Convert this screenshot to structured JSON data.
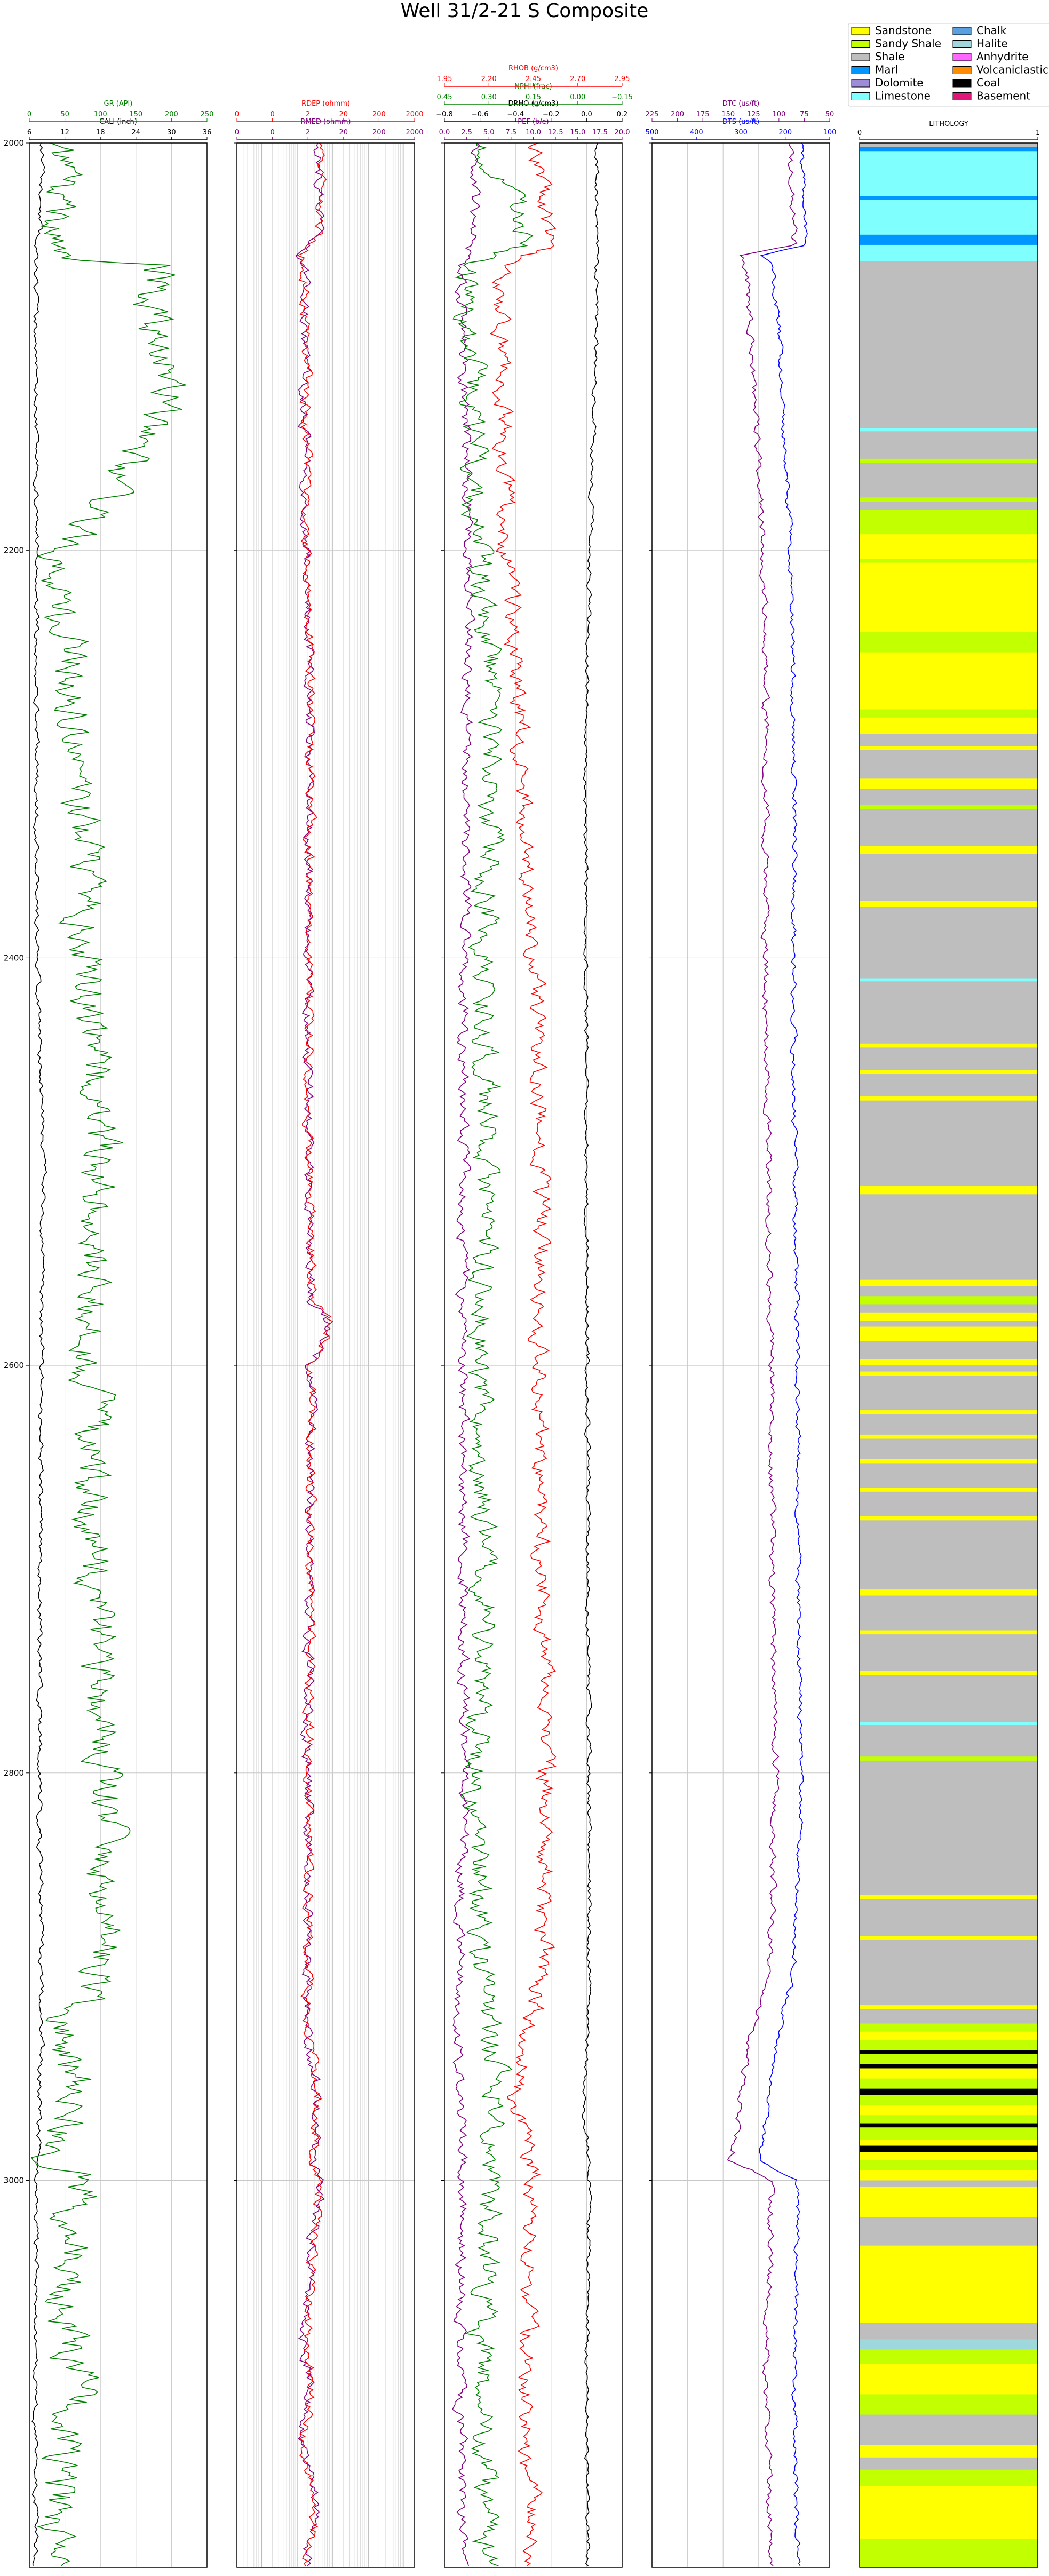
{
  "chart_data": {
    "type": "line",
    "title": "Well 31/2-21 S Composite",
    "ylim": [
      2000,
      3190
    ],
    "depth_ticks": [
      2000,
      2200,
      2400,
      2600,
      2800,
      3000
    ],
    "grid": true,
    "tracks": [
      {
        "id": "t1",
        "curves": [
          {
            "name": "CALI (inch)",
            "color": "#000000",
            "range": [
              6,
              36
            ],
            "ticks": [
              "6",
              "12",
              "18",
              "24",
              "30",
              "36"
            ]
          },
          {
            "name": "GR (API)",
            "color": "#008000",
            "range": [
              0,
              250
            ],
            "ticks": [
              "0",
              "50",
              "100",
              "150",
              "200",
              "250"
            ]
          }
        ]
      },
      {
        "id": "t2",
        "log": true,
        "curves": [
          {
            "name": "RMED (ohmm)",
            "color": "#800080",
            "range": [
              0.02,
              2000
            ],
            "ticks": [
              "0",
              "0",
              "2",
              "20",
              "200",
              "2000"
            ]
          },
          {
            "name": "RDEP (ohmm)",
            "color": "#ff0000",
            "range": [
              0.02,
              2000
            ],
            "ticks": [
              "0",
              "0",
              "2",
              "20",
              "200",
              "2000"
            ]
          }
        ]
      },
      {
        "id": "t3",
        "curves": [
          {
            "name": "PEF (b/e)",
            "color": "#800080",
            "range": [
              0,
              20
            ],
            "ticks": [
              "0.0",
              "2.5",
              "5.0",
              "7.5",
              "10.0",
              "12.5",
              "15.0",
              "17.5",
              "20.0"
            ]
          },
          {
            "name": "DRHO (g/cm3)",
            "color": "#000000",
            "range": [
              -0.9,
              0.3
            ],
            "ticks": [
              "−0.8",
              "−0.6",
              "−0.4",
              "−0.2",
              "0.0",
              "0.2"
            ]
          },
          {
            "name": "NPHI (frac)",
            "color": "#008000",
            "range": [
              0.45,
              -0.15
            ],
            "ticks": [
              "0.45",
              "0.30",
              "0.15",
              "0.00",
              "−0.15"
            ]
          },
          {
            "name": "RHOB (g/cm3)",
            "color": "#ff0000",
            "range": [
              1.95,
              2.95
            ],
            "ticks": [
              "1.95",
              "2.20",
              "2.45",
              "2.70",
              "2.95"
            ]
          }
        ]
      },
      {
        "id": "t4",
        "curves": [
          {
            "name": "DTS (us/ft)",
            "color": "#0000ff",
            "range": [
              550,
              50
            ],
            "ticks": [
              "500",
              "400",
              "300",
              "200",
              "100"
            ]
          },
          {
            "name": "DTC (us/ft)",
            "color": "#800080",
            "range": [
              240,
              40
            ],
            "ticks": [
              "225",
              "200",
              "175",
              "150",
              "125",
              "100",
              "75",
              "50"
            ]
          }
        ]
      },
      {
        "id": "t5",
        "name": "LITHOLOGY",
        "range": [
          0,
          1
        ],
        "ticks": [
          "0",
          "1"
        ]
      }
    ],
    "legend": {
      "placement": "top-right",
      "entries": [
        {
          "label": "Sandstone",
          "color": "#ffff00"
        },
        {
          "label": "Sandy Shale",
          "color": "#c2ff00"
        },
        {
          "label": "Shale",
          "color": "#bebebe"
        },
        {
          "label": "Marl",
          "color": "#0096ff"
        },
        {
          "label": "Dolomite",
          "color": "#9e8cd9"
        },
        {
          "label": "Limestone",
          "color": "#80ffff"
        },
        {
          "label": "Chalk",
          "color": "#5aa0e0"
        },
        {
          "label": "Halite",
          "color": "#9ed7dc"
        },
        {
          "label": "Anhydrite",
          "color": "#ff66ff"
        },
        {
          "label": "Volcaniclastics",
          "color": "#ff8c00"
        },
        {
          "label": "Coal",
          "color": "#000000"
        },
        {
          "label": "Basement",
          "color": "#e0157a"
        }
      ]
    },
    "lithology": [
      [
        2000,
        2002,
        "Shale"
      ],
      [
        2002,
        2004,
        "Marl"
      ],
      [
        2004,
        2026,
        "Limestone"
      ],
      [
        2026,
        2028,
        "Marl"
      ],
      [
        2028,
        2045,
        "Limestone"
      ],
      [
        2045,
        2050,
        "Marl"
      ],
      [
        2050,
        2058,
        "Limestone"
      ],
      [
        2058,
        2140,
        "Shale"
      ],
      [
        2140,
        2141.5,
        "Limestone"
      ],
      [
        2141.5,
        2155,
        "Shale"
      ],
      [
        2155,
        2157,
        "Sandy Shale"
      ],
      [
        2157,
        2174,
        "Shale"
      ],
      [
        2174,
        2176,
        "Sandy Shale"
      ],
      [
        2176,
        2180,
        "Shale"
      ],
      [
        2180,
        2192,
        "Sandy Shale"
      ],
      [
        2192,
        2204,
        "Sandstone"
      ],
      [
        2204,
        2206,
        "Sandy Shale"
      ],
      [
        2206,
        2240,
        "Sandstone"
      ],
      [
        2240,
        2250,
        "Sandy Shale"
      ],
      [
        2250,
        2260,
        "Sandstone"
      ],
      [
        2260,
        2278,
        "Sandstone"
      ],
      [
        2278,
        2282,
        "Sandy Shale"
      ],
      [
        2282,
        2290,
        "Sandstone"
      ],
      [
        2290,
        2296,
        "Shale"
      ],
      [
        2296,
        2298,
        "Sandstone"
      ],
      [
        2298,
        2312,
        "Shale"
      ],
      [
        2312,
        2317,
        "Sandstone"
      ],
      [
        2317,
        2325,
        "Shale"
      ],
      [
        2325,
        2327,
        "Sandy Shale"
      ],
      [
        2327,
        2345,
        "Shale"
      ],
      [
        2345,
        2349,
        "Sandstone"
      ],
      [
        2349,
        2372,
        "Shale"
      ],
      [
        2372,
        2375,
        "Sandstone"
      ],
      [
        2375,
        2410,
        "Shale"
      ],
      [
        2410,
        2411.5,
        "Limestone"
      ],
      [
        2411.5,
        2442,
        "Shale"
      ],
      [
        2442,
        2444,
        "Sandstone"
      ],
      [
        2444,
        2455,
        "Shale"
      ],
      [
        2455,
        2457,
        "Sandstone"
      ],
      [
        2457,
        2468,
        "Shale"
      ],
      [
        2468,
        2470,
        "Sandstone"
      ],
      [
        2470,
        2512,
        "Shale"
      ],
      [
        2512,
        2516,
        "Sandstone"
      ],
      [
        2516,
        2558,
        "Shale"
      ],
      [
        2558,
        2561,
        "Sandstone"
      ],
      [
        2561,
        2566,
        "Shale"
      ],
      [
        2566,
        2570,
        "Sandy Shale"
      ],
      [
        2570,
        2574,
        "Shale"
      ],
      [
        2574,
        2578,
        "Sandstone"
      ],
      [
        2578,
        2581,
        "Shale"
      ],
      [
        2581,
        2588,
        "Sandstone"
      ],
      [
        2588,
        2597,
        "Shale"
      ],
      [
        2597,
        2600,
        "Sandstone"
      ],
      [
        2600,
        2603,
        "Shale"
      ],
      [
        2603,
        2605,
        "Sandstone"
      ],
      [
        2605,
        2622,
        "Shale"
      ],
      [
        2622,
        2624,
        "Sandstone"
      ],
      [
        2624,
        2634,
        "Shale"
      ],
      [
        2634,
        2636,
        "Sandstone"
      ],
      [
        2636,
        2646,
        "Shale"
      ],
      [
        2646,
        2648,
        "Sandstone"
      ],
      [
        2648,
        2660,
        "Shale"
      ],
      [
        2660,
        2662,
        "Sandstone"
      ],
      [
        2662,
        2674,
        "Shale"
      ],
      [
        2674,
        2676,
        "Sandstone"
      ],
      [
        2676,
        2710,
        "Shale"
      ],
      [
        2710,
        2713,
        "Sandstone"
      ],
      [
        2713,
        2730,
        "Shale"
      ],
      [
        2730,
        2732,
        "Sandstone"
      ],
      [
        2732,
        2750,
        "Shale"
      ],
      [
        2750,
        2752,
        "Sandstone"
      ],
      [
        2752,
        2775,
        "Shale"
      ],
      [
        2775,
        2776.5,
        "Limestone"
      ],
      [
        2776.5,
        2792,
        "Shale"
      ],
      [
        2792,
        2794,
        "Sandy Shale"
      ],
      [
        2794,
        2860,
        "Shale"
      ],
      [
        2860,
        2862,
        "Sandstone"
      ],
      [
        2862,
        2880,
        "Shale"
      ],
      [
        2880,
        2882,
        "Sandstone"
      ],
      [
        2882,
        2914,
        "Shale"
      ],
      [
        2914,
        2916,
        "Sandstone"
      ],
      [
        2916,
        2923,
        "Shale"
      ],
      [
        2923,
        2927,
        "Sandy Shale"
      ],
      [
        2927,
        2931,
        "Sandstone"
      ],
      [
        2931,
        2936,
        "Sandy Shale"
      ],
      [
        2936,
        2938,
        "Coal"
      ],
      [
        2938,
        2943,
        "Sandy Shale"
      ],
      [
        2943,
        2945,
        "Coal"
      ],
      [
        2945,
        2950,
        "Sandstone"
      ],
      [
        2950,
        2955,
        "Sandy Shale"
      ],
      [
        2955,
        2958,
        "Coal"
      ],
      [
        2958,
        2963,
        "Sandy Shale"
      ],
      [
        2963,
        2968,
        "Sandstone"
      ],
      [
        2968,
        2972,
        "Sandy Shale"
      ],
      [
        2972,
        2974,
        "Coal"
      ],
      [
        2974,
        2980,
        "Sandy Shale"
      ],
      [
        2980,
        2983,
        "Sandstone"
      ],
      [
        2983,
        2986,
        "Coal"
      ],
      [
        2986,
        2990,
        "Sandstone"
      ],
      [
        2990,
        2995,
        "Sandy Shale"
      ],
      [
        2995,
        3000,
        "Sandstone"
      ],
      [
        3000,
        3003,
        "Shale"
      ],
      [
        3003,
        3018,
        "Sandstone"
      ],
      [
        3018,
        3032,
        "Shale"
      ],
      [
        3032,
        3070,
        "Sandstone"
      ],
      [
        3070,
        3078,
        "Shale"
      ],
      [
        3078,
        3083,
        "Halite"
      ],
      [
        3083,
        3090,
        "Sandy Shale"
      ],
      [
        3090,
        3105,
        "Sandstone"
      ],
      [
        3105,
        3115,
        "Sandy Shale"
      ],
      [
        3115,
        3130,
        "Shale"
      ],
      [
        3130,
        3136,
        "Sandstone"
      ],
      [
        3136,
        3142,
        "Shale"
      ],
      [
        3142,
        3150,
        "Sandy Shale"
      ],
      [
        3150,
        3176,
        "Sandstone"
      ],
      [
        3176,
        3190,
        "Sandy Shale"
      ]
    ],
    "series": [
      {
        "name": "CALI (inch)",
        "track": "t1",
        "seed": 11,
        "depth": [
          2000,
          2040,
          2060,
          2100,
          2200,
          2400,
          2500,
          2600,
          2800,
          2920,
          2980,
          3000,
          3100,
          3190
        ],
        "values": [
          8.2,
          7.6,
          7.0,
          7.1,
          7.2,
          7.3,
          8.4,
          8.0,
          7.6,
          8.1,
          7.5,
          7.2,
          7.0,
          7.1
        ],
        "noise": 0.35
      },
      {
        "name": "GR (API)",
        "track": "t1",
        "seed": 12,
        "depth": [
          2000,
          2040,
          2057,
          2060,
          2090,
          2120,
          2160,
          2190,
          2200,
          2250,
          2300,
          2400,
          2500,
          2560,
          2600,
          2700,
          2800,
          2900,
          2925,
          2960,
          2990,
          3000,
          3030,
          3060,
          3100,
          3150,
          3190
        ],
        "values": [
          40,
          35,
          45,
          180,
          170,
          210,
          130,
          80,
          40,
          55,
          70,
          80,
          100,
          90,
          85,
          90,
          110,
          105,
          40,
          80,
          30,
          70,
          65,
          45,
          70,
          35,
          55
        ],
        "noise": 22
      },
      {
        "name": "RMED (ohmm)",
        "track": "t2",
        "seed": 21,
        "depth": [
          2000,
          2010,
          2040,
          2055,
          2060,
          2200,
          2260,
          2400,
          2500,
          2570,
          2580,
          2600,
          2700,
          2800,
          2920,
          2960,
          2990,
          3000,
          3040,
          3080,
          3100,
          3130,
          3160,
          3190
        ],
        "values": [
          3,
          4,
          4,
          1.2,
          1.6,
          1.7,
          2.2,
          2.1,
          2.0,
          2.5,
          8,
          2.5,
          2.2,
          2.0,
          1.8,
          3.5,
          2.5,
          4.2,
          2.5,
          1.5,
          2.5,
          1.3,
          3,
          1.6
        ],
        "noise": 0.12
      },
      {
        "name": "RDEP (ohmm)",
        "track": "t2",
        "seed": 22,
        "depth": [
          2000,
          2010,
          2040,
          2055,
          2060,
          2200,
          2260,
          2400,
          2500,
          2570,
          2580,
          2600,
          2700,
          2800,
          2920,
          2960,
          2990,
          3000,
          3040,
          3080,
          3100,
          3130,
          3160,
          3190
        ],
        "values": [
          3.2,
          4.3,
          4.2,
          1.3,
          1.7,
          1.8,
          2.3,
          2.2,
          2.1,
          2.7,
          9,
          2.7,
          2.3,
          2.1,
          1.9,
          3.8,
          2.7,
          4.5,
          2.6,
          1.6,
          2.7,
          1.4,
          3.2,
          1.7
        ],
        "noise": 0.12
      },
      {
        "name": "PEF (b/e)",
        "track": "t3",
        "seed": 31,
        "depth": [
          2000,
          2050,
          2060,
          2200,
          2400,
          2600,
          2800,
          2930,
          3000,
          3100,
          3190
        ],
        "values": [
          3.5,
          3.2,
          1.8,
          2.8,
          2.2,
          2.0,
          2.3,
          1.5,
          2.0,
          1.8,
          2.2
        ],
        "noise": 0.5
      },
      {
        "name": "DRHO (g/cm3)",
        "track": "t3",
        "seed": 32,
        "depth": [
          2000,
          2100,
          2300,
          2500,
          2700,
          2900,
          2960,
          3000,
          3100,
          3190
        ],
        "values": [
          0.13,
          0.12,
          0.05,
          0.06,
          0.07,
          0.08,
          0.04,
          0.08,
          0.06,
          0.07
        ],
        "noise": 0.012
      },
      {
        "name": "NPHI (frac)",
        "track": "t3",
        "seed": 33,
        "depth": [
          2000,
          2050,
          2060,
          2200,
          2300,
          2400,
          2500,
          2600,
          2700,
          2800,
          2900,
          2960,
          3000,
          3100,
          3190
        ],
        "values": [
          0.32,
          0.16,
          0.38,
          0.33,
          0.28,
          0.32,
          0.3,
          0.33,
          0.31,
          0.34,
          0.33,
          0.26,
          0.3,
          0.33,
          0.31
        ],
        "noise": 0.035
      },
      {
        "name": "RHOB (g/cm3)",
        "track": "t3",
        "seed": 34,
        "depth": [
          2000,
          2050,
          2060,
          2200,
          2300,
          2400,
          2500,
          2600,
          2700,
          2800,
          2900,
          2960,
          3000,
          3100,
          3190
        ],
        "values": [
          2.45,
          2.55,
          2.25,
          2.3,
          2.38,
          2.45,
          2.5,
          2.48,
          2.5,
          2.52,
          2.5,
          2.35,
          2.45,
          2.4,
          2.45
        ],
        "noise": 0.04
      },
      {
        "name": "DTS (us/ft)",
        "track": "t4",
        "seed": 41,
        "depth": [
          2000,
          2050,
          2055,
          2060,
          2100,
          2200,
          2300,
          2400,
          2500,
          2600,
          2700,
          2800,
          2900,
          2930,
          2990,
          3000,
          3100,
          3190
        ],
        "values": [
          130,
          120,
          240,
          210,
          190,
          160,
          150,
          150,
          150,
          140,
          140,
          130,
          150,
          200,
          250,
          140,
          150,
          140
        ],
        "noise": 6
      },
      {
        "name": "DTC (us/ft)",
        "track": "t4",
        "seed": 42,
        "depth": [
          2000,
          2050,
          2055,
          2060,
          2100,
          2200,
          2300,
          2400,
          2500,
          2600,
          2700,
          2800,
          2900,
          2930,
          2990,
          3000,
          3100,
          3190
        ],
        "values": [
          85,
          80,
          140,
          135,
          128,
          115,
          112,
          112,
          110,
          105,
          105,
          100,
          108,
          130,
          150,
          105,
          112,
          104
        ],
        "noise": 3
      }
    ]
  }
}
